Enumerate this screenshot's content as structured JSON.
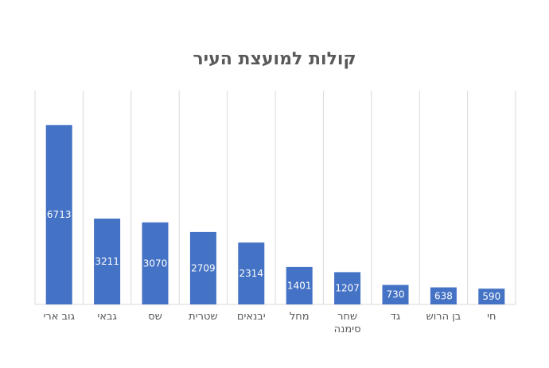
{
  "chart_data": {
    "type": "bar",
    "title": "קולות למועצת העיר",
    "xlabel": "",
    "ylabel": "",
    "categories": [
      "גוב ארי",
      "גבאי",
      "שס",
      "שטרית",
      "יבנאים",
      "מחל",
      "שחר סימנה",
      "גד",
      "בן הרוש",
      "חי"
    ],
    "values": [
      6713,
      3211,
      3070,
      2709,
      2314,
      1401,
      1207,
      730,
      638,
      590
    ],
    "ylim": [
      0,
      8000
    ],
    "grid": "vertical",
    "legend": "none",
    "bar_color": "#4472C4",
    "grid_color": "#D9D9D9",
    "data_labels": true
  }
}
